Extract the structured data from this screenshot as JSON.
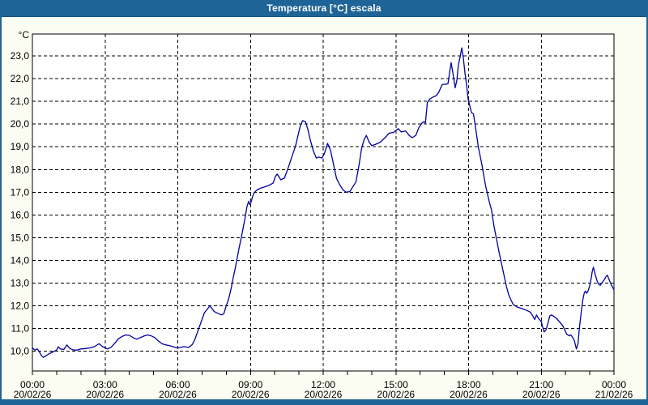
{
  "window": {
    "title": "Temperatura [°C] escala"
  },
  "colors": {
    "title_bar": "#1e6496",
    "window_frame": "#1e6496",
    "content_bg": "#fbfdf2",
    "plot_bg": "#ffffff",
    "grid": "#000000",
    "line": "#0000a0",
    "title_text": "#ffffff",
    "label_text": "#000000"
  },
  "chart_data": {
    "type": "line",
    "title": "Temperatura [°C] escala",
    "ylabel": "°C",
    "xlabel": "",
    "x_unit": "hour of day (20/02/26 00:00 to 21/02/26 00:00)",
    "ylim": [
      9.1,
      24.0
    ],
    "xlim": [
      0,
      24
    ],
    "grid": "dashed",
    "legend": "none",
    "line_color": "#0000a0",
    "minor_x_tick_every_hours": 1,
    "y_ticks": [
      {
        "value": 23,
        "label": "23,0"
      },
      {
        "value": 22,
        "label": "22,0"
      },
      {
        "value": 21,
        "label": "21,0"
      },
      {
        "value": 20,
        "label": "20,0"
      },
      {
        "value": 19,
        "label": "19,0"
      },
      {
        "value": 18,
        "label": "18,0"
      },
      {
        "value": 17,
        "label": "17,0"
      },
      {
        "value": 16,
        "label": "16,0"
      },
      {
        "value": 15,
        "label": "15,0"
      },
      {
        "value": 14,
        "label": "14,0"
      },
      {
        "value": 13,
        "label": "13,0"
      },
      {
        "value": 12,
        "label": "12,0"
      },
      {
        "value": 11,
        "label": "11,0"
      },
      {
        "value": 10,
        "label": "10,0"
      }
    ],
    "x_ticks": [
      {
        "hour": 0,
        "time": "00:00",
        "date": "20/02/26"
      },
      {
        "hour": 3,
        "time": "03:00",
        "date": "20/02/26"
      },
      {
        "hour": 6,
        "time": "06:00",
        "date": "20/02/26"
      },
      {
        "hour": 9,
        "time": "09:00",
        "date": "20/02/26"
      },
      {
        "hour": 12,
        "time": "12:00",
        "date": "20/02/26"
      },
      {
        "hour": 15,
        "time": "15:00",
        "date": "20/02/26"
      },
      {
        "hour": 18,
        "time": "18:00",
        "date": "20/02/26"
      },
      {
        "hour": 21,
        "time": "21:00",
        "date": "20/02/26"
      },
      {
        "hour": 24,
        "time": "00:00",
        "date": "21/02/26"
      }
    ],
    "series": [
      {
        "name": "Temperatura [°C]",
        "points": [
          [
            0,
            10.15
          ],
          [
            0.1,
            10.05
          ],
          [
            0.2,
            10.1
          ],
          [
            0.3,
            9.95
          ],
          [
            0.38,
            9.8
          ],
          [
            0.45,
            9.73
          ],
          [
            0.55,
            9.8
          ],
          [
            0.7,
            9.9
          ],
          [
            0.85,
            9.97
          ],
          [
            1,
            10.05
          ],
          [
            1.07,
            10.2
          ],
          [
            1.15,
            10.1
          ],
          [
            1.3,
            10.08
          ],
          [
            1.42,
            10.28
          ],
          [
            1.55,
            10.12
          ],
          [
            1.7,
            10.05
          ],
          [
            1.85,
            10.05
          ],
          [
            2,
            10.1
          ],
          [
            2.2,
            10.12
          ],
          [
            2.4,
            10.15
          ],
          [
            2.55,
            10.2
          ],
          [
            2.75,
            10.33
          ],
          [
            2.9,
            10.2
          ],
          [
            3,
            10.15
          ],
          [
            3.1,
            10.1
          ],
          [
            3.25,
            10.18
          ],
          [
            3.4,
            10.35
          ],
          [
            3.55,
            10.55
          ],
          [
            3.7,
            10.65
          ],
          [
            3.85,
            10.72
          ],
          [
            4,
            10.7
          ],
          [
            4.15,
            10.6
          ],
          [
            4.3,
            10.53
          ],
          [
            4.45,
            10.6
          ],
          [
            4.6,
            10.67
          ],
          [
            4.75,
            10.72
          ],
          [
            4.9,
            10.68
          ],
          [
            5.05,
            10.6
          ],
          [
            5.2,
            10.45
          ],
          [
            5.35,
            10.33
          ],
          [
            5.5,
            10.28
          ],
          [
            5.65,
            10.25
          ],
          [
            5.8,
            10.2
          ],
          [
            5.95,
            10.15
          ],
          [
            6.1,
            10.17
          ],
          [
            6.25,
            10.2
          ],
          [
            6.45,
            10.17
          ],
          [
            6.6,
            10.3
          ],
          [
            6.7,
            10.5
          ],
          [
            6.8,
            10.8
          ],
          [
            6.9,
            11.1
          ],
          [
            7,
            11.4
          ],
          [
            7.1,
            11.7
          ],
          [
            7.25,
            11.9
          ],
          [
            7.32,
            12
          ],
          [
            7.4,
            11.9
          ],
          [
            7.5,
            11.75
          ],
          [
            7.65,
            11.67
          ],
          [
            7.8,
            11.6
          ],
          [
            7.9,
            11.65
          ],
          [
            8,
            12
          ],
          [
            8.1,
            12.3
          ],
          [
            8.2,
            12.75
          ],
          [
            8.28,
            13.2
          ],
          [
            8.37,
            13.65
          ],
          [
            8.45,
            14.1
          ],
          [
            8.53,
            14.55
          ],
          [
            8.62,
            15
          ],
          [
            8.7,
            15.45
          ],
          [
            8.78,
            15.9
          ],
          [
            8.85,
            16.35
          ],
          [
            8.92,
            16.6
          ],
          [
            8.97,
            16.45
          ],
          [
            9.02,
            16.55
          ],
          [
            9.1,
            16.85
          ],
          [
            9.17,
            17
          ],
          [
            9.27,
            17.1
          ],
          [
            9.4,
            17.17
          ],
          [
            9.55,
            17.22
          ],
          [
            9.75,
            17.3
          ],
          [
            9.93,
            17.4
          ],
          [
            10.03,
            17.7
          ],
          [
            10.1,
            17.8
          ],
          [
            10.25,
            17.55
          ],
          [
            10.4,
            17.62
          ],
          [
            10.55,
            18.05
          ],
          [
            10.72,
            18.6
          ],
          [
            10.85,
            19
          ],
          [
            10.95,
            19.45
          ],
          [
            11.05,
            19.9
          ],
          [
            11.15,
            20.15
          ],
          [
            11.27,
            20.1
          ],
          [
            11.37,
            19.75
          ],
          [
            11.47,
            19.3
          ],
          [
            11.6,
            18.8
          ],
          [
            11.72,
            18.5
          ],
          [
            11.82,
            18.55
          ],
          [
            11.95,
            18.5
          ],
          [
            12.05,
            18.7
          ],
          [
            12.18,
            19.15
          ],
          [
            12.3,
            18.85
          ],
          [
            12.45,
            18.1
          ],
          [
            12.55,
            17.6
          ],
          [
            12.7,
            17.3
          ],
          [
            12.82,
            17.1
          ],
          [
            12.95,
            17
          ],
          [
            13.1,
            17.03
          ],
          [
            13.2,
            17.2
          ],
          [
            13.35,
            17.45
          ],
          [
            13.48,
            18.2
          ],
          [
            13.58,
            18.9
          ],
          [
            13.68,
            19.3
          ],
          [
            13.78,
            19.5
          ],
          [
            13.9,
            19.2
          ],
          [
            14,
            19.05
          ],
          [
            14.15,
            19.1
          ],
          [
            14.35,
            19.2
          ],
          [
            14.55,
            19.4
          ],
          [
            14.72,
            19.6
          ],
          [
            14.9,
            19.63
          ],
          [
            15.1,
            19.8
          ],
          [
            15.22,
            19.65
          ],
          [
            15.4,
            19.7
          ],
          [
            15.55,
            19.5
          ],
          [
            15.67,
            19.4
          ],
          [
            15.82,
            19.5
          ],
          [
            15.95,
            19.85
          ],
          [
            16.08,
            20.05
          ],
          [
            16.15,
            20.1
          ],
          [
            16.22,
            20.05
          ],
          [
            16.3,
            20.95
          ],
          [
            16.4,
            21.1
          ],
          [
            16.55,
            21.2
          ],
          [
            16.67,
            21.25
          ],
          [
            16.77,
            21.4
          ],
          [
            16.85,
            21.6
          ],
          [
            16.92,
            21.75
          ],
          [
            17.05,
            21.75
          ],
          [
            17.15,
            21.78
          ],
          [
            17.22,
            22.3
          ],
          [
            17.28,
            22.7
          ],
          [
            17.35,
            22.25
          ],
          [
            17.45,
            21.6
          ],
          [
            17.52,
            21.95
          ],
          [
            17.58,
            22.6
          ],
          [
            17.65,
            22.95
          ],
          [
            17.72,
            23.35
          ],
          [
            17.78,
            22.95
          ],
          [
            17.85,
            22.25
          ],
          [
            17.92,
            21.7
          ],
          [
            17.98,
            21.1
          ],
          [
            18.05,
            20.8
          ],
          [
            18.12,
            20.5
          ],
          [
            18.2,
            20.45
          ],
          [
            18.28,
            19.9
          ],
          [
            18.4,
            19
          ],
          [
            18.55,
            18.2
          ],
          [
            18.7,
            17.3
          ],
          [
            18.85,
            16.6
          ],
          [
            18.95,
            16.2
          ],
          [
            19.05,
            15.5
          ],
          [
            19.15,
            14.95
          ],
          [
            19.25,
            14.4
          ],
          [
            19.35,
            13.9
          ],
          [
            19.45,
            13.4
          ],
          [
            19.55,
            12.9
          ],
          [
            19.65,
            12.5
          ],
          [
            19.75,
            12.25
          ],
          [
            19.85,
            12.05
          ],
          [
            20,
            11.95
          ],
          [
            20.2,
            11.88
          ],
          [
            20.4,
            11.8
          ],
          [
            20.55,
            11.72
          ],
          [
            20.65,
            11.55
          ],
          [
            20.73,
            11.4
          ],
          [
            20.8,
            11.6
          ],
          [
            20.88,
            11.45
          ],
          [
            21,
            11.3
          ],
          [
            21.05,
            11.1
          ],
          [
            21.12,
            10.85
          ],
          [
            21.2,
            10.95
          ],
          [
            21.28,
            11.25
          ],
          [
            21.35,
            11.55
          ],
          [
            21.42,
            11.6
          ],
          [
            21.5,
            11.55
          ],
          [
            21.62,
            11.45
          ],
          [
            21.75,
            11.3
          ],
          [
            21.9,
            11.1
          ],
          [
            22.05,
            10.75
          ],
          [
            22.15,
            10.68
          ],
          [
            22.22,
            10.72
          ],
          [
            22.3,
            10.6
          ],
          [
            22.37,
            10.45
          ],
          [
            22.45,
            10.1
          ],
          [
            22.52,
            10.35
          ],
          [
            22.57,
            11
          ],
          [
            22.62,
            11.45
          ],
          [
            22.67,
            11.9
          ],
          [
            22.72,
            12.3
          ],
          [
            22.77,
            12.55
          ],
          [
            22.82,
            12.65
          ],
          [
            22.87,
            12.55
          ],
          [
            22.93,
            12.65
          ],
          [
            23,
            12.9
          ],
          [
            23.05,
            13.15
          ],
          [
            23.1,
            13.5
          ],
          [
            23.15,
            13.7
          ],
          [
            23.22,
            13.4
          ],
          [
            23.3,
            13.1
          ],
          [
            23.37,
            12.95
          ],
          [
            23.43,
            12.9
          ],
          [
            23.5,
            13
          ],
          [
            23.6,
            13.15
          ],
          [
            23.68,
            13.3
          ],
          [
            23.73,
            13.35
          ],
          [
            23.8,
            13.15
          ],
          [
            23.88,
            12.95
          ],
          [
            23.95,
            12.8
          ],
          [
            24,
            12.72
          ]
        ]
      }
    ]
  }
}
